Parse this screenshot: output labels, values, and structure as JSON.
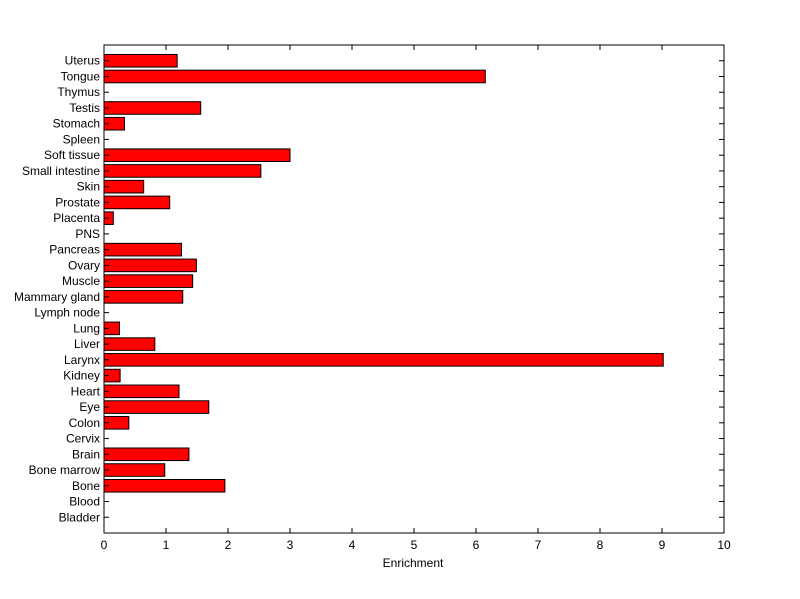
{
  "chart_data": {
    "type": "bar",
    "orientation": "horizontal",
    "xlabel": "Enrichment",
    "ylabel": "",
    "title": "",
    "xlim": [
      0,
      10
    ],
    "x_ticks": [
      "0",
      "1",
      "2",
      "3",
      "4",
      "5",
      "6",
      "7",
      "8",
      "9",
      "10"
    ],
    "categories": [
      "Bladder",
      "Blood",
      "Bone",
      "Bone marrow",
      "Brain",
      "Cervix",
      "Colon",
      "Eye",
      "Heart",
      "Kidney",
      "Larynx",
      "Liver",
      "Lung",
      "Lymph node",
      "Mammary gland",
      "Muscle",
      "Ovary",
      "Pancreas",
      "PNS",
      "Placenta",
      "Prostate",
      "Skin",
      "Small intestine",
      "Soft tissue",
      "Spleen",
      "Stomach",
      "Testis",
      "Thymus",
      "Tongue",
      "Uterus"
    ],
    "values": [
      0,
      0,
      1.95,
      0.98,
      1.37,
      0,
      0.4,
      1.69,
      1.21,
      0.26,
      9.02,
      0.82,
      0.25,
      0,
      1.27,
      1.43,
      1.49,
      1.25,
      0,
      0.15,
      1.06,
      0.64,
      2.53,
      3.0,
      0,
      0.33,
      1.56,
      0,
      6.15,
      1.18
    ],
    "bar_color": "#ff0000",
    "bar_edge_color": "#000000",
    "grid": false
  }
}
